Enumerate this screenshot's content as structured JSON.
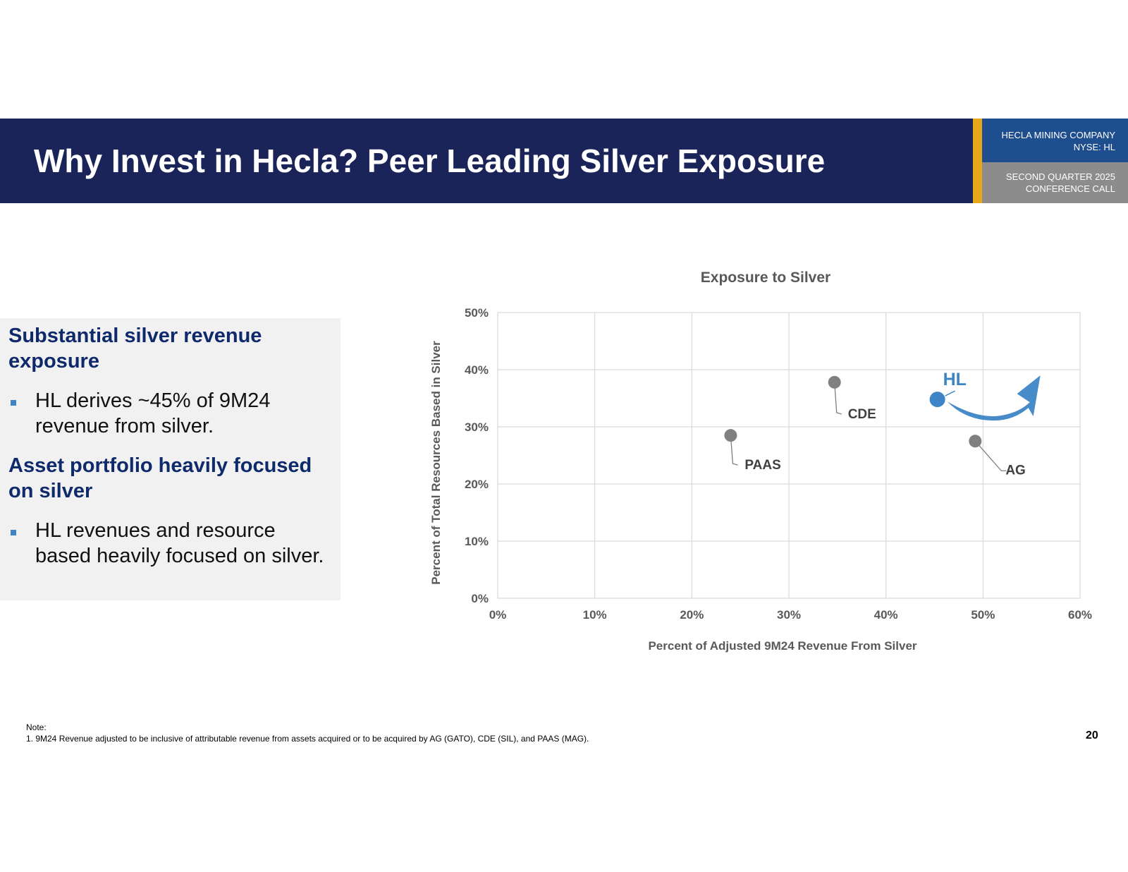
{
  "header": {
    "title": "Why Invest in Hecla? Peer Leading Silver Exposure",
    "company_line1": "HECLA MINING COMPANY",
    "company_line2": "NYSE: HL",
    "event_line1": "SECOND QUARTER 2025",
    "event_line2": "CONFERENCE CALL"
  },
  "left_panel": {
    "heading1": "Substantial silver revenue exposure",
    "bullet1": "HL derives ~45% of 9M24 revenue from silver.",
    "heading2": "Asset portfolio heavily focused on silver",
    "bullet2": "HL revenues and resource based heavily focused on silver."
  },
  "chart_data": {
    "type": "scatter",
    "title": "Exposure to Silver",
    "xlabel": "Percent of Adjusted 9M24 Revenue From Silver",
    "ylabel": "Percent of Total Resources Based in Silver",
    "xlim": [
      0,
      60
    ],
    "ylim": [
      0,
      50
    ],
    "x_ticks": [
      "0%",
      "10%",
      "20%",
      "30%",
      "40%",
      "50%",
      "60%"
    ],
    "y_ticks": [
      "0%",
      "10%",
      "20%",
      "30%",
      "40%",
      "50%"
    ],
    "grid": true,
    "points": [
      {
        "label": "PAAS",
        "x": 24,
        "y": 28.5,
        "color": "#808080"
      },
      {
        "label": "CDE",
        "x": 34.7,
        "y": 37.8,
        "color": "#808080"
      },
      {
        "label": "AG",
        "x": 49.2,
        "y": 27.5,
        "color": "#808080"
      },
      {
        "label": "HL",
        "x": 45.3,
        "y": 34.8,
        "color": "#3d85c6"
      }
    ],
    "highlight_color": "#3d85c6"
  },
  "footer": {
    "note_label": "Note:",
    "note_text": "1. 9M24 Revenue adjusted to be inclusive of attributable revenue from assets acquired or to be acquired by AG (GATO), CDE (SIL), and PAAS (MAG).",
    "page_number": "20"
  }
}
